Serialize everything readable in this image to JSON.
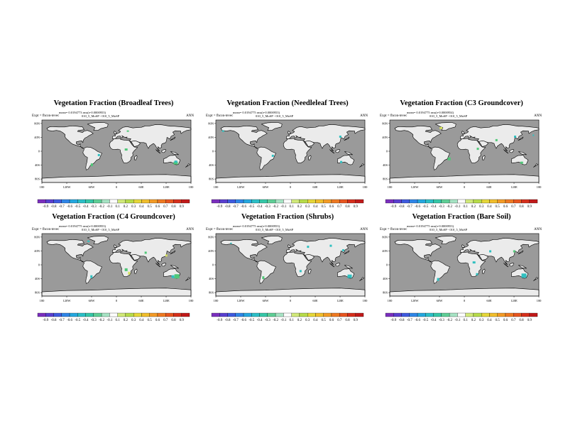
{
  "figure": {
    "experiment": "Expt = fhcon-tevec",
    "season": "ANN",
    "subtitle": "010_5_MoSP - 010_5_MoSP"
  },
  "panels": [
    {
      "title": "Vegetation Fraction (Broadleaf Trees)",
      "stats": "mean= 0.0194773 rms(e-0.0000953)"
    },
    {
      "title": "Vegetation Fraction (Needleleaf Trees)",
      "stats": "mean= 0.0194775 rms(e-0.0000953)"
    },
    {
      "title": "Vegetation Fraction (C3 Groundcover)",
      "stats": "mean= 0.0194775 rms(e-0.0000954)"
    },
    {
      "title": "Vegetation Fraction (C4 Groundcover)",
      "stats": "mean= 0.0194775 rms(e-0.0000953)"
    },
    {
      "title": "Vegetation Fraction (Shrubs)",
      "stats": "mean= 0.0194775 rms(e-0.0000953)"
    },
    {
      "title": "Vegetation Fraction (Bare Soil)",
      "stats": "mean= 0.0194775 rms(e-0.0000953)"
    }
  ],
  "map_axes": {
    "lat_ticks": [
      "80N",
      "40N",
      "0",
      "40S",
      "80S"
    ],
    "lon_ticks": [
      "180",
      "120W",
      "60W",
      "0",
      "60E",
      "120E",
      "180"
    ]
  },
  "colorbar": {
    "labels": [
      "-0.9",
      "-0.8",
      "-0.7",
      "-0.6",
      "-0.5",
      "-0.4",
      "-0.3",
      "-0.2",
      "-0.1",
      "0.1",
      "0.2",
      "0.3",
      "0.4",
      "0.5",
      "0.6",
      "0.7",
      "0.8",
      "0.9"
    ],
    "colors": [
      "#7b2fbe",
      "#5a3fd0",
      "#3f5be0",
      "#2f86e8",
      "#25a8e0",
      "#2cc0c8",
      "#36c8a8",
      "#5fcf96",
      "#a6e3c4",
      "#ffffff",
      "#d2ea7a",
      "#b7dc4a",
      "#e6d83a",
      "#f2bf2c",
      "#f49b26",
      "#ef7a22",
      "#e85620",
      "#d7301c",
      "#c11a1a"
    ]
  },
  "colors": {
    "ocean": "#9a9a9a",
    "land": "#ebebeb",
    "coast": "#000000",
    "patch_green": "#50c878",
    "patch_teal": "#30c0c0",
    "patch_yellow": "#d6e060"
  }
}
